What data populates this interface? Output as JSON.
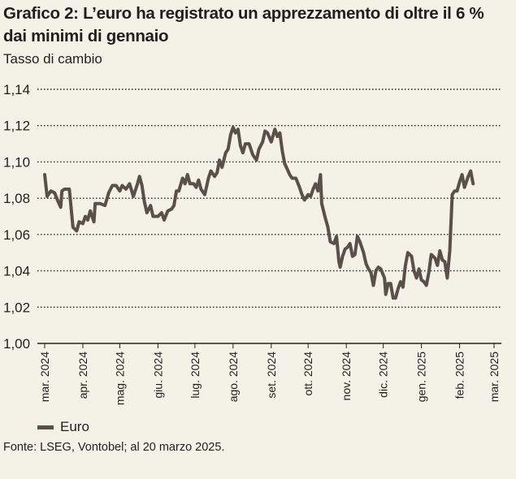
{
  "title": "Grafico 2: L’euro ha registrato un apprezzamento di oltre il 6 % dai minimi di gennaio",
  "subtitle": "Tasso di cambio",
  "legend_label": "Euro",
  "source": "Fonte: LSEG, Vontobel; al 20 marzo 2025.",
  "colors": {
    "background": "#f4f1e6",
    "line": "#5b5049",
    "grid": "#222222"
  },
  "chart_data": {
    "type": "line",
    "title": "Grafico 2: L’euro ha registrato un apprezzamento di oltre il 6 % dai minimi di gennaio",
    "ylabel": "Tasso di cambio",
    "xlabel": "",
    "ylim": [
      1.0,
      1.14
    ],
    "yticks": [
      "1,14",
      "1,12",
      "1,10",
      "1,08",
      "1,06",
      "1,04",
      "1,02",
      "1,00"
    ],
    "xlim": [
      "2024-03-01",
      "2025-03-20"
    ],
    "xticks": [
      {
        "date": "2024-03-01",
        "label": "mar. 2024"
      },
      {
        "date": "2024-04-01",
        "label": "apr. 2024"
      },
      {
        "date": "2024-05-01",
        "label": "mag. 2024"
      },
      {
        "date": "2024-06-01",
        "label": "giu. 2024"
      },
      {
        "date": "2024-07-01",
        "label": "lug. 2024"
      },
      {
        "date": "2024-08-01",
        "label": "ago. 2024"
      },
      {
        "date": "2024-09-01",
        "label": "set. 2024"
      },
      {
        "date": "2024-10-01",
        "label": "ott. 2024"
      },
      {
        "date": "2024-11-01",
        "label": "nov. 2024"
      },
      {
        "date": "2024-12-01",
        "label": "dic. 2024"
      },
      {
        "date": "2025-01-01",
        "label": "gen. 2025"
      },
      {
        "date": "2025-02-01",
        "label": "feb. 2025"
      },
      {
        "date": "2025-03-01",
        "label": "mar. 2025"
      }
    ],
    "grid": "horizontal dotted",
    "legend_position": "bottom-left",
    "series": [
      {
        "name": "Euro",
        "color": "#5b5049",
        "points": [
          [
            "2024-03-01",
            1.093
          ],
          [
            "2024-03-03",
            1.081
          ],
          [
            "2024-03-06",
            1.084
          ],
          [
            "2024-03-09",
            1.083
          ],
          [
            "2024-03-12",
            1.078
          ],
          [
            "2024-03-14",
            1.075
          ],
          [
            "2024-03-15",
            1.084
          ],
          [
            "2024-03-17",
            1.085
          ],
          [
            "2024-03-21",
            1.085
          ],
          [
            "2024-03-22",
            1.078
          ],
          [
            "2024-03-24",
            1.064
          ],
          [
            "2024-03-27",
            1.062
          ],
          [
            "2024-03-29",
            1.067
          ],
          [
            "2024-04-01",
            1.066
          ],
          [
            "2024-04-03",
            1.07
          ],
          [
            "2024-04-05",
            1.068
          ],
          [
            "2024-04-07",
            1.073
          ],
          [
            "2024-04-10",
            1.067
          ],
          [
            "2024-04-11",
            1.077
          ],
          [
            "2024-04-15",
            1.077
          ],
          [
            "2024-04-19",
            1.076
          ],
          [
            "2024-04-22",
            1.083
          ],
          [
            "2024-04-25",
            1.087
          ],
          [
            "2024-04-28",
            1.087
          ],
          [
            "2024-05-01",
            1.084
          ],
          [
            "2024-05-03",
            1.087
          ],
          [
            "2024-05-06",
            1.085
          ],
          [
            "2024-05-09",
            1.088
          ],
          [
            "2024-05-12",
            1.081
          ],
          [
            "2024-05-15",
            1.087
          ],
          [
            "2024-05-17",
            1.092
          ],
          [
            "2024-05-19",
            1.087
          ],
          [
            "2024-05-21",
            1.078
          ],
          [
            "2024-05-23",
            1.072
          ],
          [
            "2024-05-26",
            1.076
          ],
          [
            "2024-05-28",
            1.07
          ],
          [
            "2024-06-01",
            1.07
          ],
          [
            "2024-06-04",
            1.072
          ],
          [
            "2024-06-06",
            1.068
          ],
          [
            "2024-06-09",
            1.073
          ],
          [
            "2024-06-12",
            1.074
          ],
          [
            "2024-06-14",
            1.076
          ],
          [
            "2024-06-16",
            1.084
          ],
          [
            "2024-06-18",
            1.084
          ],
          [
            "2024-06-21",
            1.091
          ],
          [
            "2024-06-23",
            1.088
          ],
          [
            "2024-06-25",
            1.093
          ],
          [
            "2024-06-27",
            1.088
          ],
          [
            "2024-06-30",
            1.088
          ],
          [
            "2024-07-02",
            1.086
          ],
          [
            "2024-07-04",
            1.09
          ],
          [
            "2024-07-06",
            1.085
          ],
          [
            "2024-07-09",
            1.082
          ],
          [
            "2024-07-12",
            1.091
          ],
          [
            "2024-07-14",
            1.095
          ],
          [
            "2024-07-17",
            1.092
          ],
          [
            "2024-07-19",
            1.094
          ],
          [
            "2024-07-21",
            1.101
          ],
          [
            "2024-07-23",
            1.097
          ],
          [
            "2024-07-26",
            1.105
          ],
          [
            "2024-07-28",
            1.107
          ],
          [
            "2024-07-30",
            1.115
          ],
          [
            "2024-08-01",
            1.119
          ],
          [
            "2024-08-03",
            1.116
          ],
          [
            "2024-08-05",
            1.118
          ],
          [
            "2024-08-07",
            1.109
          ],
          [
            "2024-08-09",
            1.105
          ],
          [
            "2024-08-11",
            1.11
          ],
          [
            "2024-08-14",
            1.11
          ],
          [
            "2024-08-17",
            1.104
          ],
          [
            "2024-08-20",
            1.101
          ],
          [
            "2024-08-22",
            1.107
          ],
          [
            "2024-08-25",
            1.111
          ],
          [
            "2024-08-27",
            1.117
          ],
          [
            "2024-08-29",
            1.116
          ],
          [
            "2024-09-01",
            1.111
          ],
          [
            "2024-09-04",
            1.118
          ],
          [
            "2024-09-06",
            1.114
          ],
          [
            "2024-09-08",
            1.116
          ],
          [
            "2024-09-10",
            1.106
          ],
          [
            "2024-09-12",
            1.099
          ],
          [
            "2024-09-14",
            1.096
          ],
          [
            "2024-09-16",
            1.093
          ],
          [
            "2024-09-18",
            1.091
          ],
          [
            "2024-09-21",
            1.091
          ],
          [
            "2024-09-24",
            1.086
          ],
          [
            "2024-09-26",
            1.082
          ],
          [
            "2024-09-28",
            1.079
          ],
          [
            "2024-10-01",
            1.082
          ],
          [
            "2024-10-03",
            1.081
          ],
          [
            "2024-10-05",
            1.085
          ],
          [
            "2024-10-07",
            1.088
          ],
          [
            "2024-10-09",
            1.084
          ],
          [
            "2024-10-11",
            1.093
          ],
          [
            "2024-10-12",
            1.077
          ],
          [
            "2024-10-15",
            1.069
          ],
          [
            "2024-10-17",
            1.064
          ],
          [
            "2024-10-19",
            1.056
          ],
          [
            "2024-10-22",
            1.055
          ],
          [
            "2024-10-24",
            1.059
          ],
          [
            "2024-10-26",
            1.045
          ],
          [
            "2024-10-27",
            1.042
          ],
          [
            "2024-10-29",
            1.048
          ],
          [
            "2024-10-31",
            1.052
          ],
          [
            "2024-11-02",
            1.053
          ],
          [
            "2024-11-04",
            1.055
          ],
          [
            "2024-11-06",
            1.048
          ],
          [
            "2024-11-08",
            1.049
          ],
          [
            "2024-11-10",
            1.059
          ],
          [
            "2024-11-12",
            1.056
          ],
          [
            "2024-11-15",
            1.05
          ],
          [
            "2024-11-17",
            1.044
          ],
          [
            "2024-11-19",
            1.041
          ],
          [
            "2024-11-21",
            1.039
          ],
          [
            "2024-11-23",
            1.032
          ],
          [
            "2024-11-25",
            1.04
          ],
          [
            "2024-11-27",
            1.042
          ],
          [
            "2024-11-29",
            1.041
          ],
          [
            "2024-12-02",
            1.036
          ],
          [
            "2024-12-03",
            1.027
          ],
          [
            "2024-12-05",
            1.033
          ],
          [
            "2024-12-07",
            1.033
          ],
          [
            "2024-12-09",
            1.025
          ],
          [
            "2024-12-11",
            1.025
          ],
          [
            "2024-12-13",
            1.03
          ],
          [
            "2024-12-15",
            1.034
          ],
          [
            "2024-12-17",
            1.031
          ],
          [
            "2024-12-19",
            1.043
          ],
          [
            "2024-12-21",
            1.05
          ],
          [
            "2024-12-24",
            1.048
          ],
          [
            "2024-12-26",
            1.04
          ],
          [
            "2024-12-28",
            1.036
          ],
          [
            "2024-12-30",
            1.041
          ],
          [
            "2025-01-01",
            1.035
          ],
          [
            "2025-01-03",
            1.034
          ],
          [
            "2025-01-05",
            1.032
          ],
          [
            "2025-01-07",
            1.039
          ],
          [
            "2025-01-09",
            1.049
          ],
          [
            "2025-01-12",
            1.047
          ],
          [
            "2025-01-14",
            1.043
          ],
          [
            "2025-01-16",
            1.051
          ],
          [
            "2025-01-18",
            1.046
          ],
          [
            "2025-01-20",
            1.045
          ],
          [
            "2025-01-22",
            1.036
          ],
          [
            "2025-01-24",
            1.051
          ],
          [
            "2025-01-26",
            1.082
          ],
          [
            "2025-01-28",
            1.084
          ],
          [
            "2025-01-30",
            1.084
          ],
          [
            "2025-02-01",
            1.089
          ],
          [
            "2025-02-03",
            1.093
          ],
          [
            "2025-02-05",
            1.086
          ],
          [
            "2025-02-08",
            1.092
          ],
          [
            "2025-02-10",
            1.095
          ],
          [
            "2025-02-12",
            1.088
          ]
        ]
      }
    ]
  }
}
